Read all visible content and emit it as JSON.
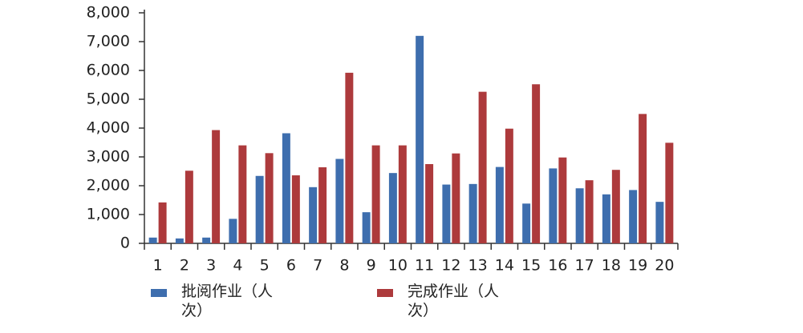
{
  "chart_data": {
    "type": "bar",
    "categories": [
      "1",
      "2",
      "3",
      "4",
      "5",
      "6",
      "7",
      "8",
      "9",
      "10",
      "11",
      "12",
      "13",
      "14",
      "15",
      "16",
      "17",
      "18",
      "19",
      "20"
    ],
    "series": [
      {
        "name": "批阅作业（人次）",
        "color": "#3e6eae",
        "values": [
          200,
          170,
          200,
          850,
          2340,
          3820,
          1950,
          2930,
          1080,
          2440,
          7200,
          2040,
          2060,
          2650,
          1380,
          2600,
          1910,
          1700,
          1850,
          1440
        ]
      },
      {
        "name": "完成作业（人次）",
        "color": "#ad3a3c",
        "values": [
          1420,
          2520,
          3930,
          3400,
          3130,
          2360,
          2640,
          5920,
          3400,
          3400,
          2750,
          3120,
          5260,
          3980,
          5520,
          2980,
          2190,
          2550,
          4490,
          3490
        ]
      }
    ],
    "ylim": [
      0,
      8000
    ],
    "yticks": [
      0,
      {
        "value": 1000,
        "label": "1,000"
      },
      {
        "value": 2000,
        "label": "2,000"
      },
      {
        "value": 3000,
        "label": "3,000"
      },
      {
        "value": 4000,
        "label": "4,000"
      },
      {
        "value": 5000,
        "label": "5,000"
      },
      {
        "value": 6000,
        "label": "6,000"
      },
      {
        "value": 7000,
        "label": "7,000"
      },
      {
        "value": 8000,
        "label": "8,000"
      }
    ],
    "grid": false
  }
}
